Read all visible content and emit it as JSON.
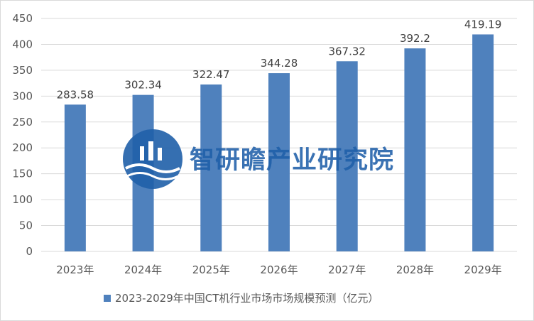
{
  "chart_data": {
    "type": "bar",
    "categories": [
      "2023年",
      "2024年",
      "2025年",
      "2026年",
      "2027年",
      "2028年",
      "2029年"
    ],
    "series": [
      {
        "name": "2023-2029年中国CT机行业市场市场规模预测（亿元）",
        "values": [
          283.58,
          302.34,
          322.47,
          344.28,
          367.32,
          392.2,
          419.19
        ],
        "labels": [
          "283.58",
          "302.34",
          "322.47",
          "344.28",
          "367.32",
          "392.2",
          "419.19"
        ],
        "color": "#4f81bd"
      }
    ],
    "y_ticks": [
      0,
      50,
      100,
      150,
      200,
      250,
      300,
      350,
      400,
      450
    ],
    "ylim": [
      0,
      450
    ],
    "grid": true,
    "legend_position": "bottom"
  },
  "watermark": {
    "text": "智研瞻产业研究院",
    "color": "#1f5fa8"
  }
}
